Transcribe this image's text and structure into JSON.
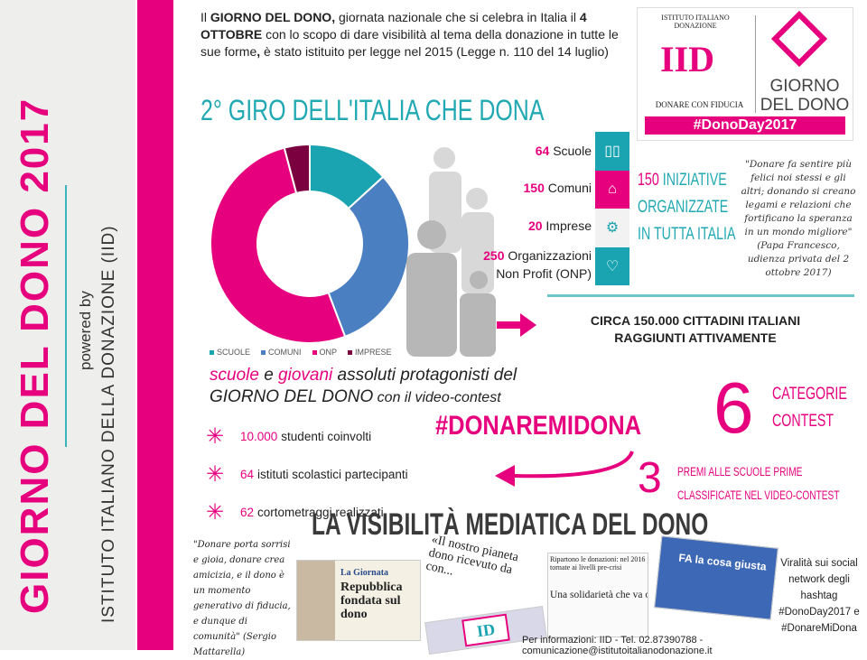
{
  "sidebar": {
    "title": "GIORNO DEL DONO 2017",
    "powered_by": "powered by",
    "institute": "ISTITUTO ITALIANO DELLA DONAZIONE (IID)"
  },
  "intro": {
    "p1": "Il ",
    "b1": "GIORNO DEL DONO,",
    "p2": " giornata nazionale che si celebra in Italia il ",
    "b2": "4 OTTOBRE",
    "p3": " con lo scopo di dare visibilità al tema della donazione in tutte le sue forme",
    "b3": ",",
    "p4": " è stato istituito per legge nel 2015 (Legge n. 110 del 14 luglio)"
  },
  "logo": {
    "iid": "IID",
    "arc": "ISTITUTO ITALIANO DONAZIONE",
    "motto": "DONARE CON FIDUCIA",
    "giorno": "GIORNO",
    "del_dono": "DEL DONO",
    "hashtag": "#DonoDay2017"
  },
  "heading": "2° GIRO DELL'ITALIA CHE DONA",
  "stats": [
    {
      "n": "64",
      "label": "Scuole"
    },
    {
      "n": "150",
      "label": "Comuni"
    },
    {
      "n": "20",
      "label": "Imprese"
    },
    {
      "n": "250",
      "label": "Organizzazioni",
      "label2": "Non Profit (ONP)"
    }
  ],
  "initiatives": {
    "n": "150",
    "l1": "INIZIATIVE",
    "l2": "ORGANIZZATE",
    "l3": "IN TUTTA ITALIA"
  },
  "pope_quote": "\"Donare fa sentire più felici noi stessi e gli altri; donando si creano legami e relazioni che fortificano la speranza in un mondo migliore\" (Papa Francesco, udienza privata del 2 ottobre 2017)",
  "citizens": {
    "l1": "CIRCA 150.000 CITTADINI ITALIANI",
    "l2": "RAGGIUNTI ATTIVAMENTE"
  },
  "chart_data": {
    "type": "pie",
    "donut": true,
    "categories": [
      "SCUOLE",
      "COMUNI",
      "ONP",
      "IMPRESE"
    ],
    "values": [
      64,
      150,
      250,
      20
    ],
    "colors": [
      "#1aa3b0",
      "#4a7fc1",
      "#e6007e",
      "#7a0040"
    ],
    "legend": "bottom"
  },
  "protagonists": {
    "w1": "scuole",
    "w2": " e ",
    "w3": "giovani",
    "w4": " assoluti protagonisti del",
    "l2a": "GIORNO DEL DONO",
    "l2b": " con il video-contest"
  },
  "items": [
    {
      "n": "10.000",
      "t": "studenti coinvolti"
    },
    {
      "n": "64",
      "t": "istituti scolastici partecipanti"
    },
    {
      "n": "62",
      "t": "cortometraggi realizzati"
    }
  ],
  "hashtag": "#DONAREMIDONA",
  "contest": {
    "n": "6",
    "l1": "CATEGORIE",
    "l2": "CONTEST"
  },
  "prizes": {
    "n": "3",
    "l1": "PREMI ALLE SCUOLE PRIME",
    "l2": "CLASSIFICATE NEL VIDEO-CONTEST"
  },
  "media_title": "LA VISIBILITÀ MEDIATICA DEL DONO",
  "mattarella_quote": "\"Donare porta sorrisi e gioia, donare crea amicizia, e il dono è un momento generativo di fiducia, e dunque di comunità\" (Sergio Mattarella)",
  "clips": {
    "c1a": "La Giornata",
    "c1b": "Repubblica fondata sul dono",
    "c2": "«Il nostro pianeta dono ricevuto da con...",
    "c3a": "Ripartono le donazioni: nel 2016 tornate ai livelli pre-crisi",
    "c3b": "Una solidarietà che va oltre le emergenze",
    "c4": "FA la cosa giusta"
  },
  "virality": "Viralità sui social network degli hashtag #DonoDay2017 e #DonareMiDona",
  "footer": "Per informazioni: IID - Tel. 02.87390788 - comunicazione@istitutoitalianodonazione.it"
}
